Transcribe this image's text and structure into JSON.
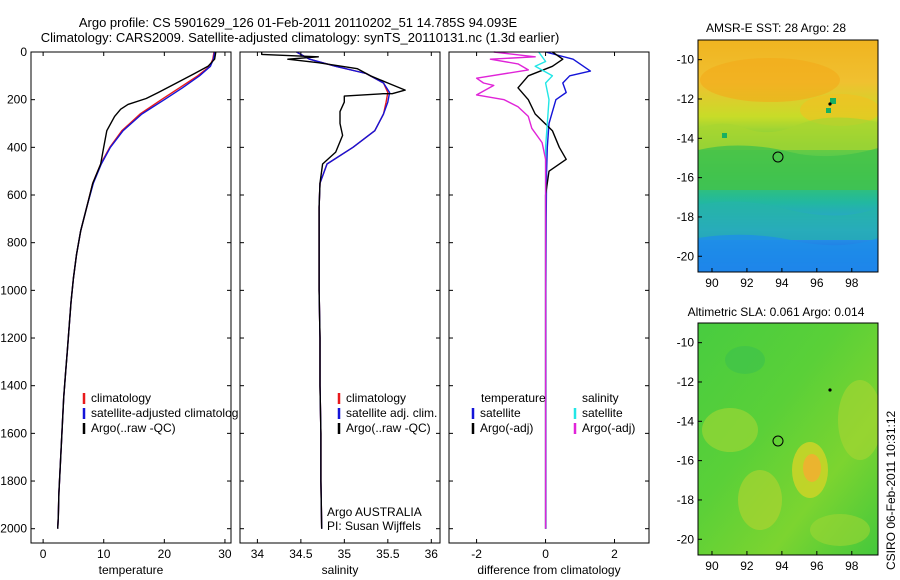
{
  "title_line1": "Argo profile: CS 5901629_126 01-Feb-2011 20110202_51 14.785S 94.093E",
  "title_line2": "Climatology: CARS2009. Satellite-adjusted climatology: synTS_20110131.nc (1.3d earlier)",
  "side_label": "CSIRO 06-Feb-2011 10:31:12",
  "colors": {
    "red": "#e8191c",
    "blue": "#1414d8",
    "black": "#000000",
    "cyan": "#22e6e6",
    "magenta": "#e024d8"
  },
  "chart_data": [
    {
      "type": "line",
      "panel": "temperature",
      "xlabel": "temperature",
      "ylabel": "",
      "xlim": [
        -2,
        31
      ],
      "ylim": [
        2060,
        0
      ],
      "xticks": [
        0,
        10,
        20,
        30
      ],
      "yticks": [
        0,
        200,
        400,
        600,
        800,
        1000,
        1200,
        1400,
        1600,
        1800,
        2000
      ],
      "legend": [
        "climatology",
        "satellite-adjusted climatolog",
        "Argo(..raw -QC)"
      ],
      "series": [
        {
          "name": "climatology",
          "color": "red",
          "points": [
            [
              28.2,
              0
            ],
            [
              28.0,
              30
            ],
            [
              27.5,
              60
            ],
            [
              25.5,
              100
            ],
            [
              22.5,
              150
            ],
            [
              19.5,
              200
            ],
            [
              16,
              260
            ],
            [
              13,
              330
            ],
            [
              11,
              400
            ],
            [
              9.5,
              470
            ],
            [
              8.2,
              550
            ],
            [
              7.2,
              650
            ],
            [
              6.2,
              750
            ],
            [
              5.5,
              850
            ],
            [
              5.0,
              950
            ],
            [
              4.6,
              1050
            ],
            [
              4.3,
              1150
            ],
            [
              4.0,
              1250
            ],
            [
              3.7,
              1350
            ],
            [
              3.4,
              1450
            ],
            [
              3.2,
              1550
            ],
            [
              3.0,
              1650
            ],
            [
              2.8,
              1750
            ],
            [
              2.6,
              1850
            ],
            [
              2.5,
              1950
            ],
            [
              2.4,
              2000
            ]
          ]
        },
        {
          "name": "satellite-adjusted climatolog",
          "color": "blue",
          "points": [
            [
              28.3,
              0
            ],
            [
              28.1,
              30
            ],
            [
              27.6,
              60
            ],
            [
              25.8,
              100
            ],
            [
              23,
              150
            ],
            [
              20,
              200
            ],
            [
              16.3,
              260
            ],
            [
              13.2,
              330
            ],
            [
              11.1,
              400
            ],
            [
              9.6,
              470
            ],
            [
              8.3,
              550
            ],
            [
              7.2,
              650
            ],
            [
              6.2,
              750
            ],
            [
              5.5,
              850
            ],
            [
              5.0,
              950
            ],
            [
              4.6,
              1050
            ],
            [
              4.3,
              1150
            ],
            [
              4.0,
              1250
            ],
            [
              3.7,
              1350
            ],
            [
              3.4,
              1450
            ],
            [
              3.2,
              1550
            ],
            [
              3.0,
              1650
            ],
            [
              2.8,
              1750
            ],
            [
              2.6,
              1850
            ],
            [
              2.5,
              1950
            ],
            [
              2.4,
              2000
            ]
          ]
        },
        {
          "name": "Argo(..raw -QC)",
          "color": "black",
          "points": [
            [
              28.5,
              0
            ],
            [
              28.3,
              30
            ],
            [
              27.2,
              60
            ],
            [
              25,
              90
            ],
            [
              22,
              130
            ],
            [
              19,
              170
            ],
            [
              17,
              195
            ],
            [
              14,
              220
            ],
            [
              12.8,
              240
            ],
            [
              11.8,
              270
            ],
            [
              10.5,
              330
            ],
            [
              10,
              400
            ],
            [
              9.5,
              470
            ],
            [
              8.2,
              550
            ],
            [
              7.2,
              650
            ],
            [
              6.2,
              750
            ],
            [
              5.5,
              850
            ],
            [
              5.0,
              950
            ],
            [
              4.6,
              1050
            ],
            [
              4.3,
              1150
            ],
            [
              4.0,
              1250
            ],
            [
              3.7,
              1350
            ],
            [
              3.4,
              1450
            ],
            [
              3.2,
              1550
            ],
            [
              3.0,
              1650
            ],
            [
              2.8,
              1750
            ],
            [
              2.6,
              1850
            ],
            [
              2.5,
              1950
            ],
            [
              2.4,
              2000
            ]
          ]
        }
      ]
    },
    {
      "type": "line",
      "panel": "salinity",
      "xlabel": "salinity",
      "ylabel": "",
      "xlim": [
        33.8,
        36.1
      ],
      "ylim": [
        2060,
        0
      ],
      "xticks": [
        34,
        34.5,
        35,
        35.5,
        36
      ],
      "yticks": [],
      "legend": [
        "climatology",
        "satellite adj. clim.",
        "Argo(..raw -QC)"
      ],
      "annotation": [
        "Argo AUSTRALIA",
        "PI: Susan Wijffels"
      ],
      "series": [
        {
          "name": "climatology",
          "color": "red",
          "points": [
            [
              34.45,
              0
            ],
            [
              34.6,
              30
            ],
            [
              34.9,
              60
            ],
            [
              35.25,
              90
            ],
            [
              35.45,
              130
            ],
            [
              35.5,
              170
            ],
            [
              35.48,
              210
            ],
            [
              35.45,
              260
            ],
            [
              35.35,
              330
            ],
            [
              35.1,
              400
            ],
            [
              34.8,
              470
            ],
            [
              34.72,
              550
            ],
            [
              34.71,
              650
            ],
            [
              34.71,
              800
            ],
            [
              34.71,
              1000
            ],
            [
              34.72,
              1200
            ],
            [
              34.72,
              1400
            ],
            [
              34.73,
              1600
            ],
            [
              34.73,
              1800
            ],
            [
              34.74,
              2000
            ]
          ]
        },
        {
          "name": "satellite adj. clim.",
          "color": "blue",
          "points": [
            [
              34.45,
              0
            ],
            [
              34.6,
              30
            ],
            [
              34.9,
              60
            ],
            [
              35.25,
              90
            ],
            [
              35.45,
              130
            ],
            [
              35.52,
              170
            ],
            [
              35.5,
              210
            ],
            [
              35.45,
              260
            ],
            [
              35.35,
              330
            ],
            [
              35.1,
              400
            ],
            [
              34.8,
              470
            ],
            [
              34.72,
              550
            ],
            [
              34.71,
              650
            ],
            [
              34.71,
              800
            ],
            [
              34.71,
              1000
            ],
            [
              34.72,
              1200
            ],
            [
              34.72,
              1400
            ],
            [
              34.73,
              1600
            ],
            [
              34.73,
              1800
            ],
            [
              34.74,
              2000
            ]
          ]
        },
        {
          "name": "Argo(..raw -QC)",
          "color": "black",
          "points": [
            [
              34.05,
              0
            ],
            [
              34.05,
              10
            ],
            [
              34.7,
              20
            ],
            [
              34.35,
              30
            ],
            [
              34.7,
              45
            ],
            [
              35.15,
              70
            ],
            [
              35.3,
              100
            ],
            [
              35.5,
              130
            ],
            [
              35.7,
              160
            ],
            [
              35.55,
              175
            ],
            [
              35.45,
              175
            ],
            [
              35.0,
              185
            ],
            [
              35.0,
              210
            ],
            [
              34.95,
              250
            ],
            [
              34.95,
              300
            ],
            [
              34.98,
              350
            ],
            [
              34.9,
              420
            ],
            [
              34.75,
              470
            ],
            [
              34.72,
              550
            ],
            [
              34.71,
              650
            ],
            [
              34.71,
              800
            ],
            [
              34.71,
              1000
            ],
            [
              34.72,
              1200
            ],
            [
              34.72,
              1400
            ],
            [
              34.73,
              1600
            ],
            [
              34.73,
              1800
            ],
            [
              34.74,
              2000
            ]
          ]
        }
      ]
    },
    {
      "type": "line",
      "panel": "difference",
      "xlabel": "difference from climatology",
      "ylabel": "",
      "xlim": [
        -2.8,
        3.0
      ],
      "ylim": [
        2060,
        0
      ],
      "xticks": [
        -2,
        0,
        2
      ],
      "yticks": [],
      "legend_left_title": "temperature",
      "legend_right_title": "salinity",
      "legend": [
        "satellite",
        "Argo(-adj)",
        "satellite",
        "Argo(-adj)"
      ],
      "series": [
        {
          "name": "satellite",
          "group": "temperature",
          "color": "blue",
          "points": [
            [
              0,
              0
            ],
            [
              0.8,
              30
            ],
            [
              1.3,
              80
            ],
            [
              0.7,
              100
            ],
            [
              0.5,
              130
            ],
            [
              0.6,
              170
            ],
            [
              0.3,
              200
            ],
            [
              0.1,
              300
            ],
            [
              0.05,
              400
            ],
            [
              0.03,
              500
            ],
            [
              0.02,
              700
            ],
            [
              0.01,
              1000
            ],
            [
              0.01,
              1500
            ],
            [
              0.01,
              2000
            ]
          ]
        },
        {
          "name": "Argo(-adj)",
          "group": "temperature",
          "color": "black",
          "points": [
            [
              0.2,
              0
            ],
            [
              0.5,
              30
            ],
            [
              0.2,
              60
            ],
            [
              -0.5,
              100
            ],
            [
              -0.8,
              150
            ],
            [
              -0.5,
              200
            ],
            [
              -0.3,
              260
            ],
            [
              0.2,
              330
            ],
            [
              0.4,
              400
            ],
            [
              0.6,
              450
            ],
            [
              0.1,
              500
            ],
            [
              0,
              600
            ],
            [
              0,
              800
            ],
            [
              0,
              1200
            ],
            [
              0,
              1600
            ],
            [
              0,
              2000
            ]
          ]
        },
        {
          "name": "satellite",
          "group": "salinity",
          "color": "cyan",
          "points": [
            [
              -0.2,
              0
            ],
            [
              0,
              40
            ],
            [
              -0.3,
              60
            ],
            [
              0.2,
              100
            ],
            [
              0,
              130
            ],
            [
              0.1,
              200
            ],
            [
              0.05,
              300
            ],
            [
              0,
              400
            ],
            [
              0,
              600
            ],
            [
              0,
              1000
            ],
            [
              0,
              1500
            ],
            [
              0,
              2000
            ]
          ]
        },
        {
          "name": "Argo(-adj)",
          "group": "salinity",
          "color": "magenta",
          "points": [
            [
              -1.5,
              0
            ],
            [
              -0.3,
              20
            ],
            [
              -1.6,
              30
            ],
            [
              -0.8,
              50
            ],
            [
              -0.5,
              75
            ],
            [
              -2.0,
              110
            ],
            [
              -1.8,
              130
            ],
            [
              -1.5,
              140
            ],
            [
              -2.0,
              180
            ],
            [
              -1.2,
              200
            ],
            [
              -0.8,
              230
            ],
            [
              -0.5,
              270
            ],
            [
              -0.4,
              320
            ],
            [
              -0.1,
              380
            ],
            [
              0,
              450
            ],
            [
              0,
              600
            ],
            [
              0,
              1000
            ],
            [
              0,
              1500
            ],
            [
              0,
              2000
            ]
          ]
        }
      ]
    },
    {
      "type": "heatmap",
      "panel": "sst_map",
      "title": "AMSR-E SST: 28 Argo: 28",
      "xlim": [
        89.2,
        99.5
      ],
      "ylim": [
        -20.8,
        -9.0
      ],
      "xticks": [
        90,
        92,
        94,
        96,
        98
      ],
      "yticks": [
        -10,
        -12,
        -14,
        -16,
        -18,
        -20
      ],
      "profile_location": [
        94.093,
        -14.785
      ]
    },
    {
      "type": "heatmap",
      "panel": "sla_map",
      "title": "Altimetric SLA: 0.061 Argo: 0.014",
      "xlim": [
        89.2,
        99.5
      ],
      "ylim": [
        -20.8,
        -9.0
      ],
      "xticks": [
        90,
        92,
        94,
        96,
        98
      ],
      "yticks": [
        -10,
        -12,
        -14,
        -16,
        -18,
        -20
      ],
      "profile_location": [
        94.093,
        -14.785
      ]
    }
  ]
}
